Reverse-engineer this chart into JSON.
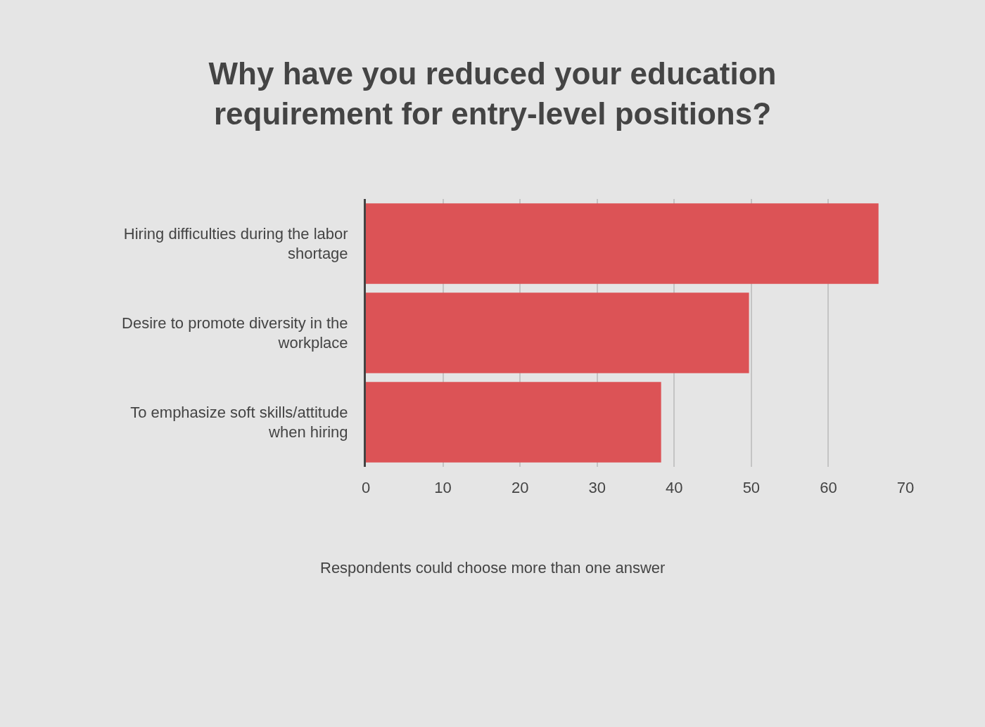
{
  "chart_data": {
    "type": "bar",
    "orientation": "horizontal",
    "title": "Why have you reduced your education requirement for entry-level positions?",
    "categories": [
      "Hiring difficulties during the labor shortage",
      "Desire to promote diversity in the workplace",
      "To emphasize soft skills/attitude when hiring"
    ],
    "values": [
      66.5,
      49.7,
      38.3
    ],
    "color": "#dc5356",
    "xlim": [
      0,
      70
    ],
    "xticks": [
      0,
      10,
      20,
      30,
      40,
      50,
      60,
      70
    ],
    "grid": "x",
    "annotations": [
      "Respondents could choose more than one answer"
    ]
  }
}
